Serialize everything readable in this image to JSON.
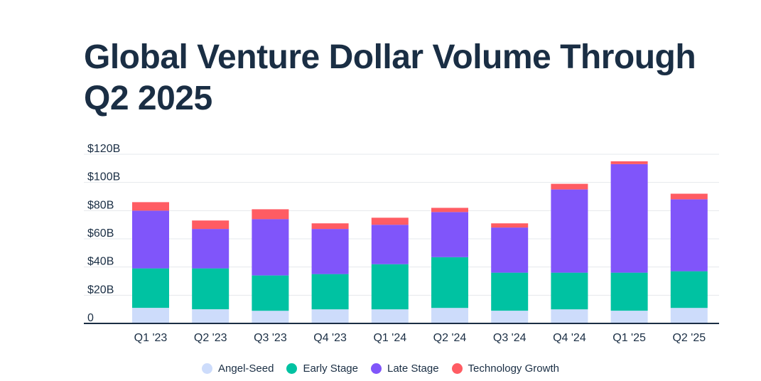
{
  "chart_data": {
    "type": "bar",
    "stacked": true,
    "title": "Global Venture Dollar Volume Through Q2 2025",
    "xlabel": "",
    "ylabel": "",
    "ylim": [
      0,
      120
    ],
    "y_ticks": [
      {
        "value": 0,
        "label": "0"
      },
      {
        "value": 20,
        "label": "$20B"
      },
      {
        "value": 40,
        "label": "$40B"
      },
      {
        "value": 60,
        "label": "$60B"
      },
      {
        "value": 80,
        "label": "$80B"
      },
      {
        "value": 100,
        "label": "$100B"
      },
      {
        "value": 120,
        "label": "$120B"
      }
    ],
    "grid": true,
    "legend_position": "bottom-center",
    "categories": [
      "Q1 '23",
      "Q2 '23",
      "Q3 '23",
      "Q4 '23",
      "Q1 '24",
      "Q2 '24",
      "Q3 '24",
      "Q4 '24",
      "Q1 '25",
      "Q2 '25"
    ],
    "series": [
      {
        "name": "Angel-Seed",
        "color": "#cddcfb",
        "values": [
          11,
          10,
          9,
          10,
          10,
          11,
          9,
          10,
          9,
          11
        ]
      },
      {
        "name": "Early Stage",
        "color": "#00c2a2",
        "values": [
          28,
          29,
          25,
          25,
          32,
          36,
          27,
          26,
          27,
          26
        ]
      },
      {
        "name": "Late Stage",
        "color": "#8055fa",
        "values": [
          41,
          28,
          40,
          32,
          28,
          32,
          32,
          59,
          77,
          51
        ]
      },
      {
        "name": "Technology Growth",
        "color": "#ff5c63",
        "values": [
          6,
          6,
          7,
          4,
          5,
          3,
          3,
          4,
          2,
          4
        ]
      }
    ]
  }
}
